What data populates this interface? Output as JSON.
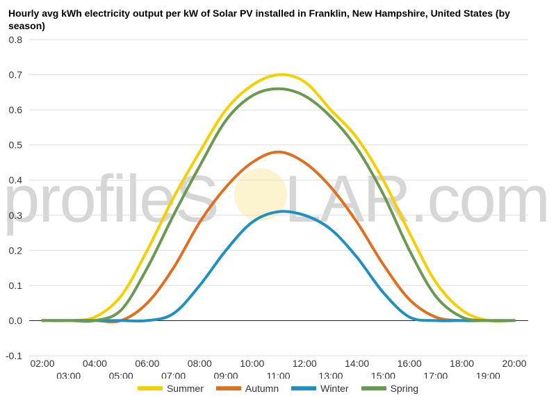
{
  "chart_data": {
    "type": "line",
    "title": "Hourly avg kWh electricity output per kW of Solar PV installed in Franklin, New Hampshire, United States (by season)",
    "xlabel": "",
    "ylabel": "",
    "ylim": [
      -0.1,
      0.8
    ],
    "yticks": [
      "0.8",
      "0.7",
      "0.6",
      "0.5",
      "0.4",
      "0.3",
      "0.2",
      "0.1",
      "0.0",
      "-0.1"
    ],
    "xlim": [
      2,
      20
    ],
    "xticks_upper": [
      "02:00",
      "04:00",
      "06:00",
      "08:00",
      "10:00",
      "12:00",
      "14:00",
      "16:00",
      "18:00",
      "20:00"
    ],
    "xticks_lower": [
      "03:00",
      "05:00",
      "07:00",
      "09:00",
      "11:00",
      "13:00",
      "15:00",
      "17:00",
      "19:00"
    ],
    "x": [
      2,
      3,
      4,
      5,
      6,
      7,
      8,
      9,
      10,
      11,
      12,
      13,
      14,
      15,
      16,
      17,
      18,
      19,
      20
    ],
    "grid": true,
    "legend": "bottom",
    "series": [
      {
        "name": "Summer",
        "color": "#f5d000",
        "values": [
          0.0,
          0.0,
          0.01,
          0.07,
          0.2,
          0.35,
          0.48,
          0.6,
          0.67,
          0.7,
          0.68,
          0.6,
          0.52,
          0.4,
          0.25,
          0.11,
          0.03,
          0.0,
          0.0
        ]
      },
      {
        "name": "Autumn",
        "color": "#e07020",
        "values": [
          0.0,
          0.0,
          0.0,
          0.0,
          0.05,
          0.15,
          0.28,
          0.38,
          0.45,
          0.48,
          0.45,
          0.38,
          0.28,
          0.16,
          0.06,
          0.01,
          0.0,
          0.0,
          0.0
        ]
      },
      {
        "name": "Winter",
        "color": "#2090c0",
        "values": [
          0.0,
          0.0,
          0.0,
          0.0,
          0.0,
          0.02,
          0.1,
          0.2,
          0.28,
          0.31,
          0.3,
          0.26,
          0.18,
          0.08,
          0.01,
          0.0,
          0.0,
          0.0,
          0.0
        ]
      },
      {
        "name": "Spring",
        "color": "#6a9a50",
        "values": [
          0.0,
          0.0,
          0.0,
          0.03,
          0.15,
          0.3,
          0.44,
          0.57,
          0.64,
          0.66,
          0.64,
          0.58,
          0.49,
          0.36,
          0.2,
          0.07,
          0.01,
          0.0,
          0.0
        ]
      }
    ]
  },
  "watermark": {
    "text_left": "profileS",
    "text_right": "LAR.com"
  }
}
